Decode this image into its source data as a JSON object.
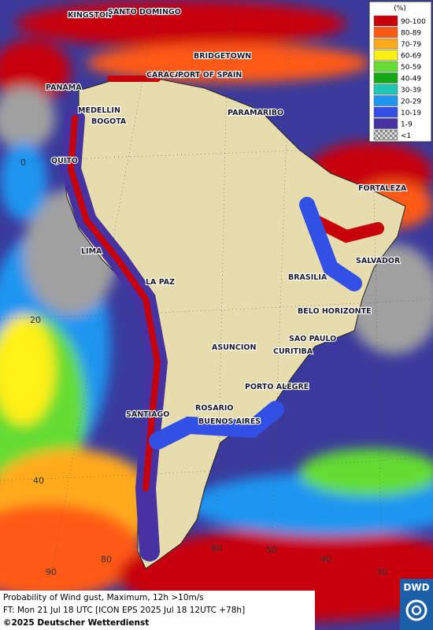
{
  "map": {
    "cities": [
      "KINGSTON",
      "SANTO DOMINGO",
      "BRIDGETOWN",
      "CARACAS",
      "PORT OF SPAIN",
      "PANAMA",
      "MEDELLIN",
      "BOGOTA",
      "PARAMARIBO",
      "QUITO",
      "FORTALEZA",
      "LIMA",
      "SALVADOR",
      "LA PAZ",
      "BRASILIA",
      "BELO HORIZONTE",
      "ASUNCION",
      "SAO PAULO",
      "CURITIBA",
      "PORTO ALEGRE",
      "ROSARIO",
      "SANTIAGO",
      "BUENOS AIRES"
    ],
    "latitude_labels": [
      "0",
      "20",
      "40"
    ],
    "longitude_labels": [
      "90",
      "80",
      "60",
      "50",
      "40",
      "30"
    ]
  },
  "legend": {
    "title": "(%)",
    "entries": [
      {
        "label": "90-100",
        "color": "#c8000a"
      },
      {
        "label": "80-89",
        "color": "#ff5a14"
      },
      {
        "label": "70-79",
        "color": "#ffaa1e"
      },
      {
        "label": "60-69",
        "color": "#fff014"
      },
      {
        "label": "50-59",
        "color": "#64dc32"
      },
      {
        "label": "40-49",
        "color": "#14aa14"
      },
      {
        "label": "30-39",
        "color": "#1ec8b4"
      },
      {
        "label": "20-29",
        "color": "#1e96f0"
      },
      {
        "label": "10-19",
        "color": "#3250e6"
      },
      {
        "label": "1-9",
        "color": "#4632a0"
      },
      {
        "label": "<1",
        "color": "#b4b4b4"
      }
    ]
  },
  "caption": {
    "line1": "Probability of Wind gust, Maximum, 12h >10m/s",
    "line2": "FT: Mon 21 Jul 18 UTC [ICON EPS 2025 Jul 18 12UTC +78h]",
    "line3": "©2025 Deutscher Wetterdienst"
  },
  "logo": "DWD"
}
